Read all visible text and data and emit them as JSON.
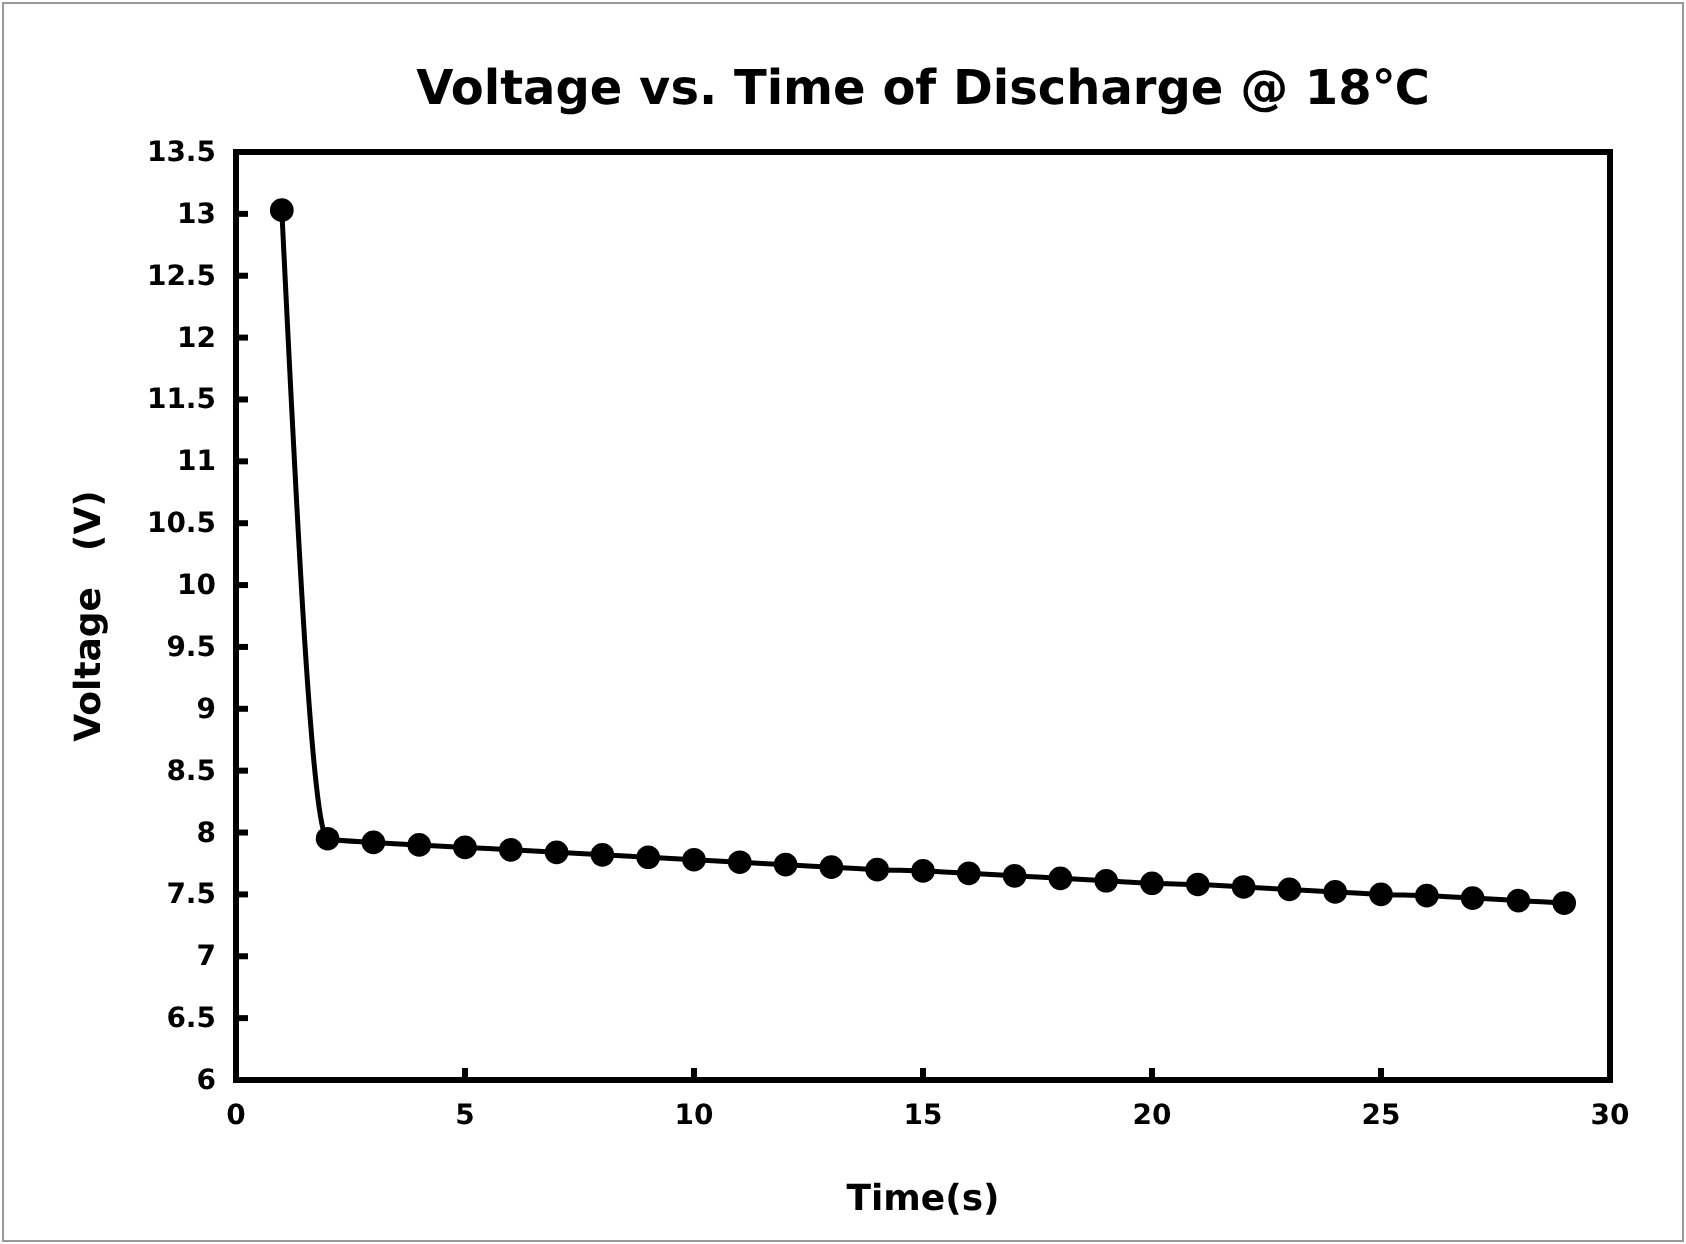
{
  "chart_data": {
    "type": "line",
    "title": "Voltage vs. Time of Discharge @ 18℃",
    "xlabel": "Time(s)",
    "ylabel": "Voltage　(V)",
    "x": [
      1,
      2,
      3,
      4,
      5,
      6,
      7,
      8,
      9,
      10,
      11,
      12,
      13,
      14,
      15,
      16,
      17,
      18,
      19,
      20,
      21,
      22,
      23,
      24,
      25,
      26,
      27,
      28,
      29
    ],
    "series": [
      {
        "color": "#000000",
        "values": [
          13.03,
          7.95,
          7.92,
          7.9,
          7.88,
          7.86,
          7.84,
          7.82,
          7.8,
          7.78,
          7.76,
          7.74,
          7.72,
          7.7,
          7.69,
          7.67,
          7.65,
          7.63,
          7.61,
          7.59,
          7.58,
          7.56,
          7.54,
          7.52,
          7.5,
          7.49,
          7.47,
          7.45,
          7.43
        ]
      }
    ],
    "xlim": [
      0,
      30
    ],
    "xticks": [
      0,
      5,
      10,
      15,
      20,
      25,
      30
    ],
    "ylim": [
      6,
      13.5
    ],
    "yticks": [
      6,
      6.5,
      7,
      7.5,
      8,
      8.5,
      9,
      9.5,
      10,
      10.5,
      11,
      11.5,
      12,
      12.5,
      13,
      13.5
    ],
    "marker": "circle",
    "line_style": "solid"
  }
}
